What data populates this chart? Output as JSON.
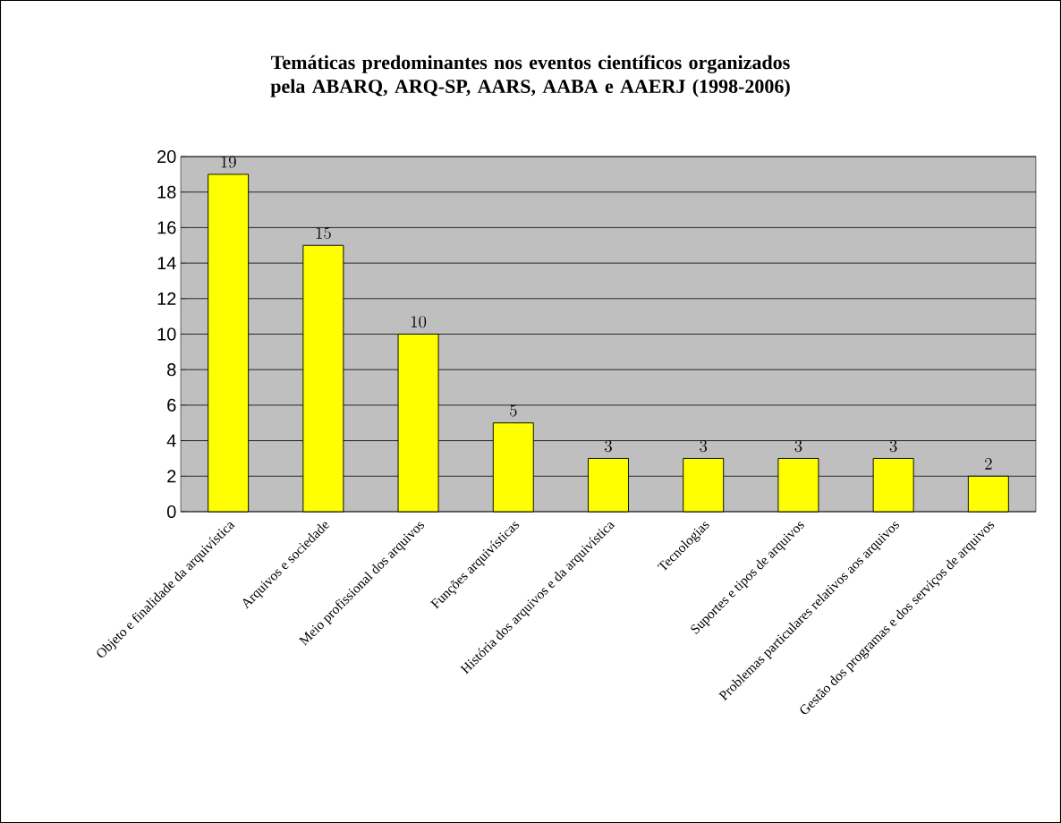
{
  "chart_data": {
    "type": "bar",
    "title": "Temáticas predominantes nos eventos científicos organizados pela ABARQ, ARQ-SP, AARS, AABA e AAERJ (1998-2006)",
    "categories": [
      "Objeto e finalidade da arquivística",
      "Arquivos e sociedade",
      "Meio profissional dos arquivos",
      "Funções arquivísticas",
      "História dos arquivos e da arquivística",
      "Tecnologias",
      "Suportes e tipos de arquivos",
      "Problemas particulares relativos aos arquivos",
      "Gestão dos programas e dos serviços de arquivos"
    ],
    "values": [
      19,
      15,
      10,
      5,
      3,
      3,
      3,
      3,
      2
    ],
    "color": "#ffff00",
    "ylim": [
      0,
      20
    ],
    "yticks": [
      0,
      2,
      4,
      6,
      8,
      10,
      12,
      14,
      16,
      18,
      20
    ],
    "grid": "y",
    "data_labels": true
  }
}
